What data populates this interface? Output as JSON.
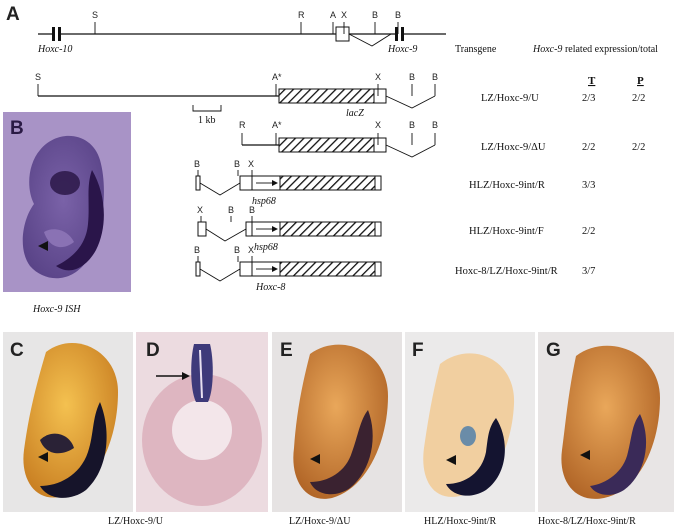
{
  "panel_letters": {
    "a": "A",
    "b": "B",
    "c": "C",
    "d": "D",
    "e": "E",
    "f": "F",
    "g": "G"
  },
  "locus": {
    "gene_left": "Hoxc-10",
    "gene_right": "Hoxc-9",
    "sites": [
      "S",
      "R",
      "A",
      "X",
      "B",
      "B"
    ]
  },
  "table_header": {
    "transgene": "Transgene",
    "expr_gene": "Hoxc-9",
    "expr_rest": " related expression/total",
    "col_t": "T",
    "col_p": "P"
  },
  "scale_bar": "1 kb",
  "constructs": [
    {
      "name": "LZ/Hoxc-9/U",
      "t": "2/3",
      "p": "2/2",
      "insert": "lacZ",
      "sites": [
        "S",
        "A*",
        "X",
        "B",
        "B"
      ]
    },
    {
      "name": "LZ/Hoxc-9/ΔU",
      "t": "2/2",
      "p": "2/2",
      "insert": "",
      "sites": [
        "R",
        "A*",
        "X",
        "B",
        "B"
      ]
    },
    {
      "name": "HLZ/Hoxc-9int/R",
      "t": "3/3",
      "p": "",
      "insert": "hsp68",
      "sites": [
        "B",
        "B",
        "X"
      ]
    },
    {
      "name": "HLZ/Hoxc-9int/F",
      "t": "2/2",
      "p": "",
      "insert": "hsp68",
      "sites": [
        "X",
        "B",
        "B"
      ]
    },
    {
      "name": "Hoxc-8/LZ/Hoxc-9int/R",
      "t": "3/7",
      "p": "",
      "insert": "Hoxc-8",
      "sites": [
        "B",
        "B",
        "X"
      ]
    }
  ],
  "ish_caption": "Hoxc-9 ISH",
  "bottom_captions": {
    "c": "LZ/Hoxc-9/U",
    "e": "LZ/Hoxc-9/ΔU",
    "f": "HLZ/Hoxc-9int/R",
    "g": "Hoxc-8/LZ/Hoxc-9int/R"
  },
  "colors": {
    "ish_stain": "#4a2a78",
    "ish_background": "#9a86bd",
    "xgal_embryo": "#e0a030",
    "xgal_stain": "#1a1a3a",
    "section_stain": "#c98c9a"
  }
}
